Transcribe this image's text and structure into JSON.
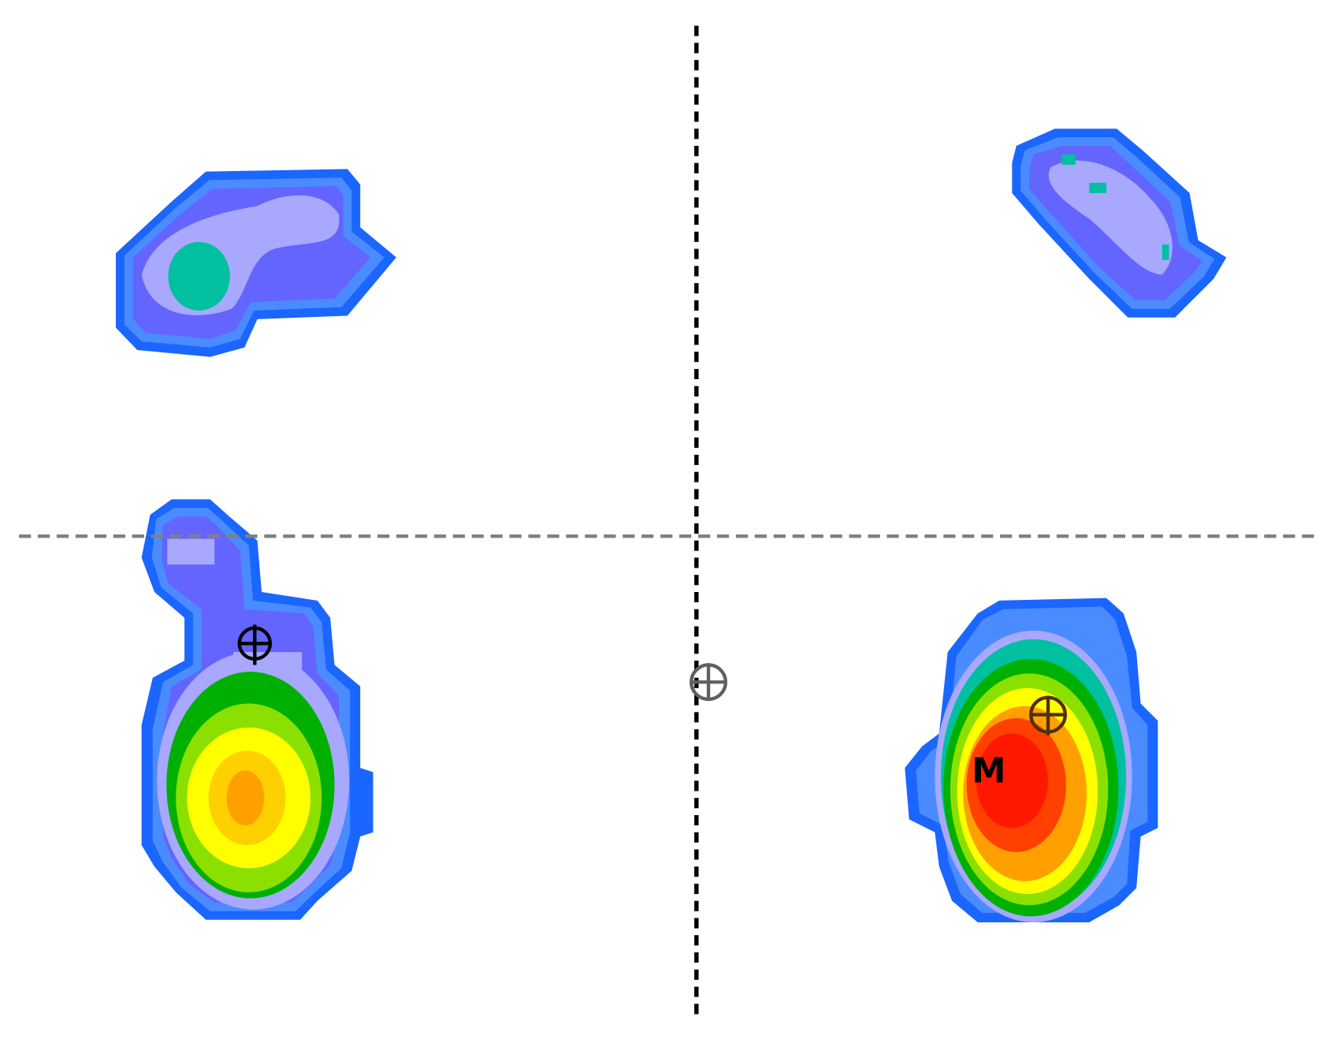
{
  "marker_label": "M"
}
